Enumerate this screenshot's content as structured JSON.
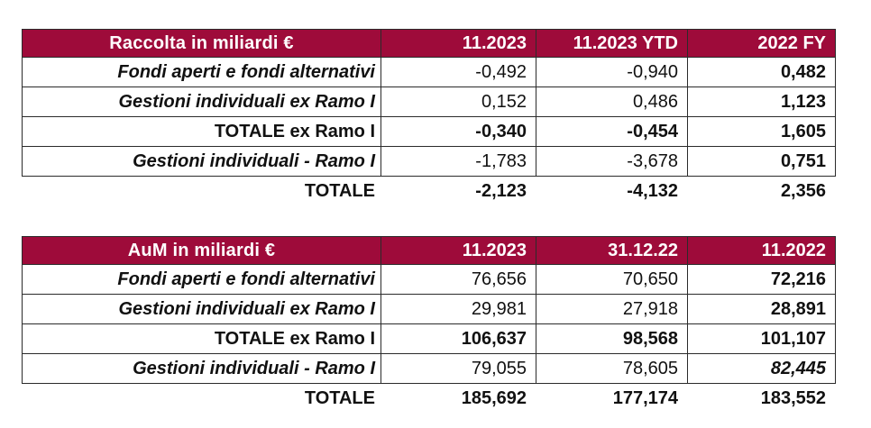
{
  "accent_color": "#9E0B3A",
  "border_color": "#2b2b2b",
  "tables": [
    {
      "title": "Raccolta in miliardi €",
      "columns": [
        "11.2023",
        "11.2023 YTD",
        "2022 FY"
      ],
      "rows": [
        {
          "label": "Fondi aperti e fondi alternativi",
          "values": [
            "-0,492",
            "-0,940",
            "0,482"
          ]
        },
        {
          "label": "Gestioni individuali ex Ramo I",
          "values": [
            "0,152",
            "0,486",
            "1,123"
          ]
        },
        {
          "label": "TOTALE ex Ramo I",
          "values": [
            "-0,340",
            "-0,454",
            "1,605"
          ]
        },
        {
          "label": "Gestioni individuali - Ramo I",
          "values": [
            "-1,783",
            "-3,678",
            "0,751"
          ]
        }
      ],
      "total": {
        "label": "TOTALE",
        "values": [
          "-2,123",
          "-4,132",
          "2,356"
        ]
      }
    },
    {
      "title": "AuM in miliardi €",
      "columns": [
        "11.2023",
        "31.12.22",
        "11.2022"
      ],
      "rows": [
        {
          "label": "Fondi aperti e fondi alternativi",
          "values": [
            "76,656",
            "70,650",
            "72,216"
          ]
        },
        {
          "label": "Gestioni individuali ex Ramo I",
          "values": [
            "29,981",
            "27,918",
            "28,891"
          ]
        },
        {
          "label": "TOTALE ex Ramo I",
          "values": [
            "106,637",
            "98,568",
            "101,107"
          ]
        },
        {
          "label": "Gestioni individuali - Ramo I",
          "values": [
            "79,055",
            "78,605",
            "82,445"
          ]
        }
      ],
      "total": {
        "label": "TOTALE",
        "values": [
          "185,692",
          "177,174",
          "183,552"
        ]
      }
    }
  ]
}
